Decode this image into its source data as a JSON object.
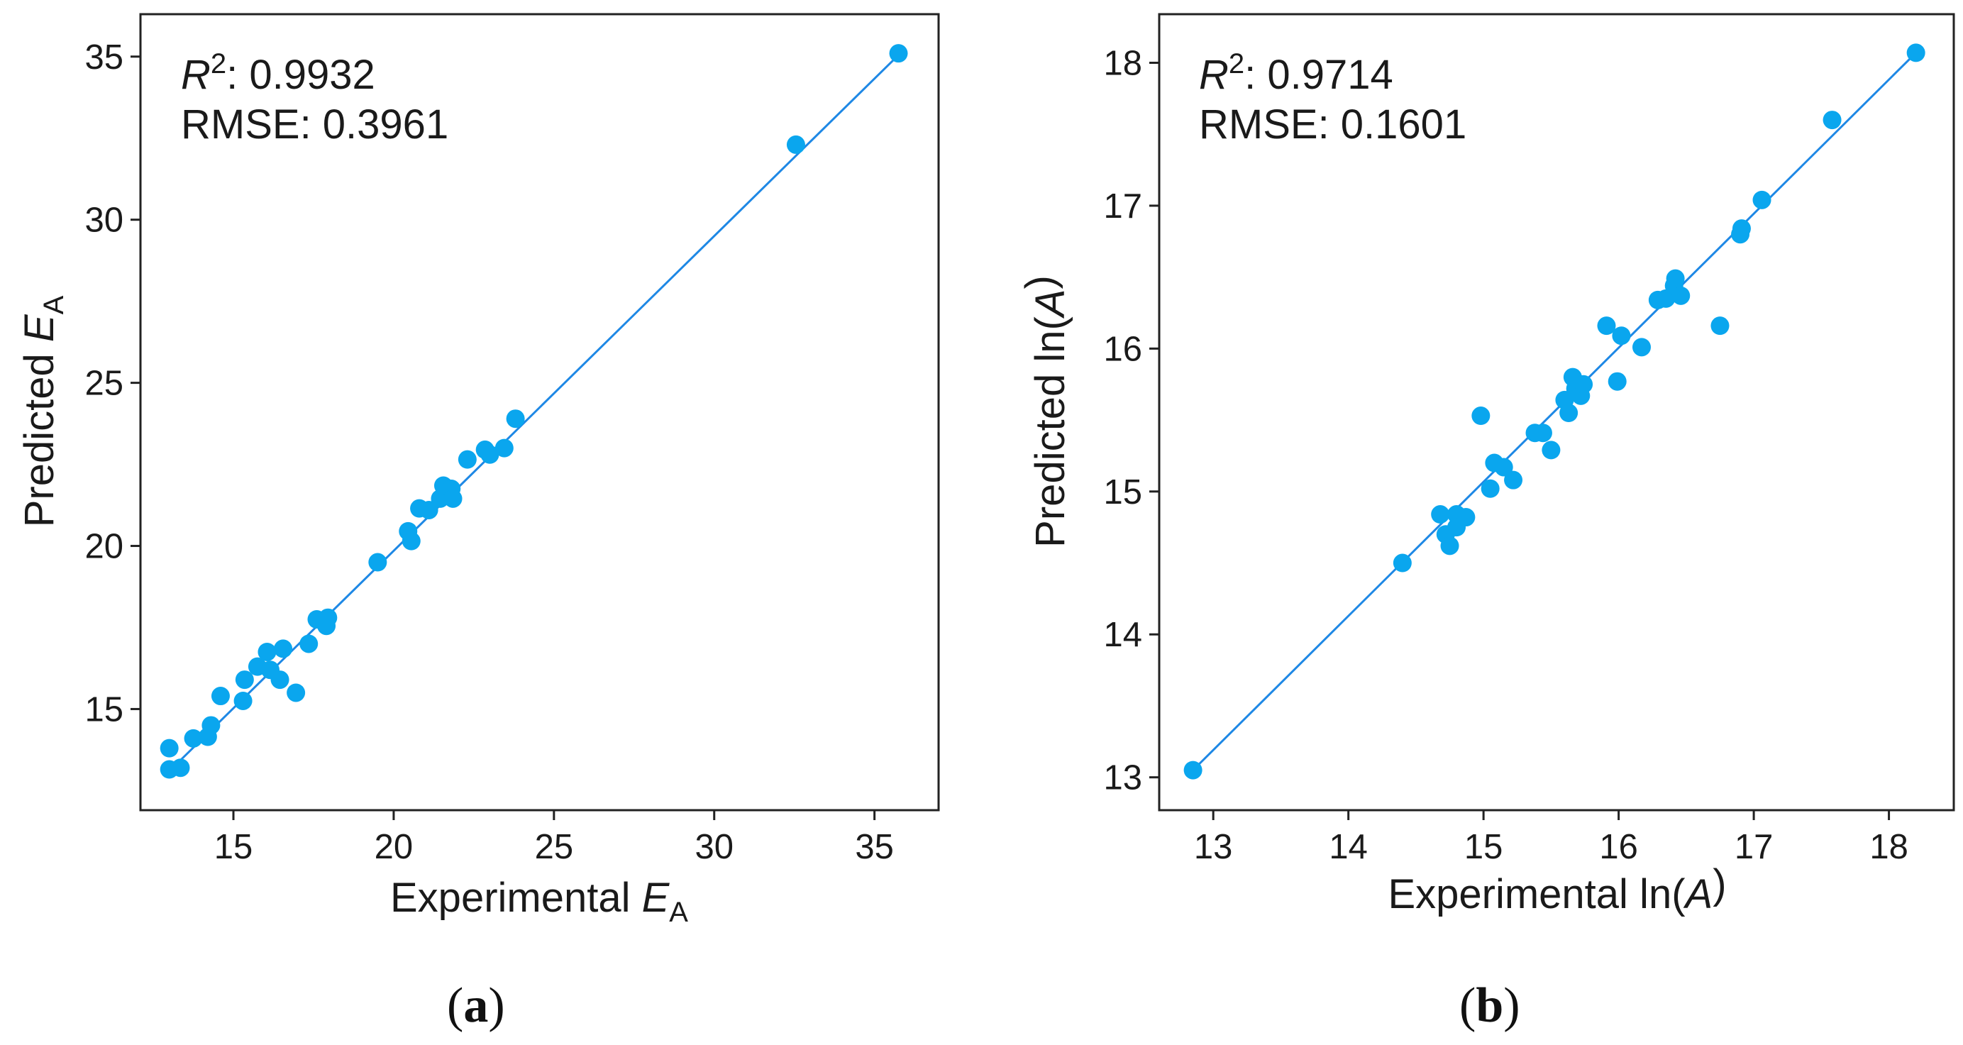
{
  "colors": {
    "fit_line": "#1e88e5",
    "points": "#0aa6ee",
    "axes": "#222222"
  },
  "chart_data": [
    {
      "type": "scatter",
      "panel_label": {
        "open": "(",
        "letter": "a",
        "close": ")"
      },
      "stats": {
        "r2_label": "R",
        "r2_sup": "2",
        "r2_value": ": 0.9932",
        "rmse_label": "RMSE: 0.3961"
      },
      "xlabel": {
        "text": "Experimental ",
        "var": "E",
        "sub": "A",
        "tail": ""
      },
      "ylabel": {
        "text": "Predicted ",
        "var": "E",
        "sub": "A",
        "tail": ""
      },
      "xlim": [
        12.1,
        37.0
      ],
      "ylim": [
        11.9,
        36.3
      ],
      "xticks": [
        15,
        20,
        25,
        30,
        35
      ],
      "yticks": [
        15,
        20,
        25,
        30,
        35
      ],
      "fit_line": [
        [
          12.9,
          13.0
        ],
        [
          35.7,
          35.0
        ]
      ],
      "points": [
        [
          13.0,
          13.8
        ],
        [
          13.0,
          13.15
        ],
        [
          13.35,
          13.2
        ],
        [
          13.75,
          14.1
        ],
        [
          14.2,
          14.15
        ],
        [
          14.3,
          14.5
        ],
        [
          14.6,
          15.4
        ],
        [
          15.3,
          15.25
        ],
        [
          15.35,
          15.9
        ],
        [
          15.75,
          16.3
        ],
        [
          16.05,
          16.75
        ],
        [
          16.15,
          16.2
        ],
        [
          16.45,
          15.9
        ],
        [
          16.55,
          16.85
        ],
        [
          16.95,
          15.5
        ],
        [
          17.35,
          17.0
        ],
        [
          17.6,
          17.75
        ],
        [
          17.9,
          17.55
        ],
        [
          17.95,
          17.8
        ],
        [
          19.5,
          19.5
        ],
        [
          20.45,
          20.45
        ],
        [
          20.55,
          20.15
        ],
        [
          20.8,
          21.15
        ],
        [
          21.1,
          21.1
        ],
        [
          21.45,
          21.45
        ],
        [
          21.55,
          21.85
        ],
        [
          21.8,
          21.75
        ],
        [
          21.85,
          21.45
        ],
        [
          22.3,
          22.65
        ],
        [
          22.85,
          22.95
        ],
        [
          23.0,
          22.8
        ],
        [
          23.45,
          23.0
        ],
        [
          23.8,
          23.9
        ],
        [
          32.55,
          32.3
        ],
        [
          35.75,
          35.1
        ]
      ]
    },
    {
      "type": "scatter",
      "panel_label": {
        "open": "(",
        "letter": "b",
        "close": ")"
      },
      "stats": {
        "r2_label": "R",
        "r2_sup": "2",
        "r2_value": ": 0.9714",
        "rmse_label": "RMSE: 0.1601"
      },
      "xlabel": {
        "text": "Experimental ln(",
        "var": "A",
        "sub": "",
        "tail": ")"
      },
      "ylabel": {
        "text": "Predicted ln(",
        "var": "A",
        "sub": "",
        "tail": ")"
      },
      "xlim": [
        12.6,
        18.48
      ],
      "ylim": [
        12.77,
        18.34
      ],
      "xticks": [
        13,
        14,
        15,
        16,
        17,
        18
      ],
      "yticks": [
        13,
        14,
        15,
        16,
        17,
        18
      ],
      "fit_line": [
        [
          12.85,
          13.05
        ],
        [
          18.2,
          18.07
        ]
      ],
      "points": [
        [
          12.85,
          13.05
        ],
        [
          14.4,
          14.5
        ],
        [
          14.68,
          14.84
        ],
        [
          14.72,
          14.7
        ],
        [
          14.75,
          14.62
        ],
        [
          14.8,
          14.84
        ],
        [
          14.8,
          14.75
        ],
        [
          14.87,
          14.82
        ],
        [
          14.98,
          15.53
        ],
        [
          15.05,
          15.02
        ],
        [
          15.08,
          15.2
        ],
        [
          15.15,
          15.17
        ],
        [
          15.22,
          15.08
        ],
        [
          15.38,
          15.41
        ],
        [
          15.44,
          15.41
        ],
        [
          15.5,
          15.29
        ],
        [
          15.6,
          15.64
        ],
        [
          15.63,
          15.55
        ],
        [
          15.66,
          15.8
        ],
        [
          15.68,
          15.72
        ],
        [
          15.72,
          15.67
        ],
        [
          15.74,
          15.75
        ],
        [
          15.91,
          16.16
        ],
        [
          15.99,
          15.77
        ],
        [
          16.02,
          16.09
        ],
        [
          16.17,
          16.01
        ],
        [
          16.29,
          16.34
        ],
        [
          16.35,
          16.35
        ],
        [
          16.41,
          16.44
        ],
        [
          16.42,
          16.49
        ],
        [
          16.46,
          16.37
        ],
        [
          16.75,
          16.16
        ],
        [
          16.9,
          16.8
        ],
        [
          16.91,
          16.84
        ],
        [
          17.06,
          17.04
        ],
        [
          17.58,
          17.6
        ],
        [
          18.2,
          18.07
        ]
      ]
    }
  ]
}
